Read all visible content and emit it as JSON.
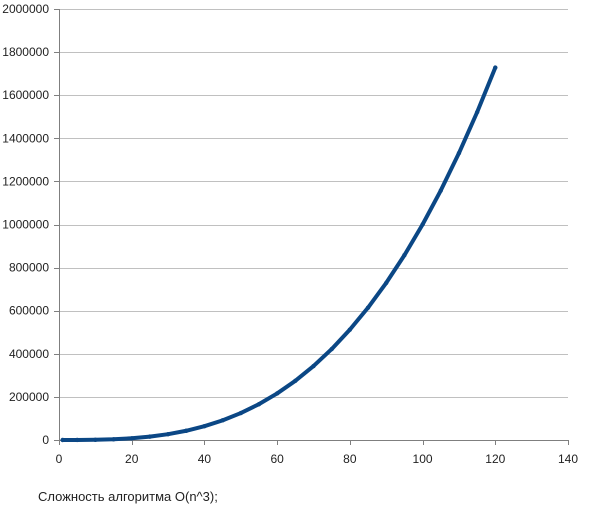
{
  "caption": "Сложность алгоритма O(n^3);",
  "colors": {
    "series": "#0b4785",
    "grid": "#c0c0c0",
    "axis": "#7f7f7f",
    "text": "#222222"
  },
  "chart_data": {
    "type": "scatter",
    "title": "",
    "xlabel": "",
    "ylabel": "",
    "xlim": [
      0,
      140
    ],
    "ylim": [
      0,
      2000000
    ],
    "x_ticks": [
      0,
      20,
      40,
      60,
      80,
      100,
      120,
      140
    ],
    "y_ticks": [
      0,
      200000,
      400000,
      600000,
      800000,
      1000000,
      1200000,
      1400000,
      1600000,
      1800000,
      2000000
    ],
    "grid": "horizontal",
    "legend": "none",
    "series": [
      {
        "x": [
          1,
          5,
          10,
          15,
          20,
          25,
          30,
          35,
          40,
          45,
          50,
          55,
          60,
          65,
          70,
          75,
          80,
          85,
          90,
          95,
          100,
          105,
          110,
          115,
          120
        ],
        "y": [
          1,
          125,
          1000,
          3375,
          8000,
          15625,
          27000,
          42875,
          64000,
          91125,
          125000,
          166375,
          216000,
          274625,
          343000,
          421875,
          512000,
          614125,
          729000,
          857375,
          1000000,
          1157625,
          1331000,
          1520875,
          1728000
        ]
      }
    ]
  }
}
